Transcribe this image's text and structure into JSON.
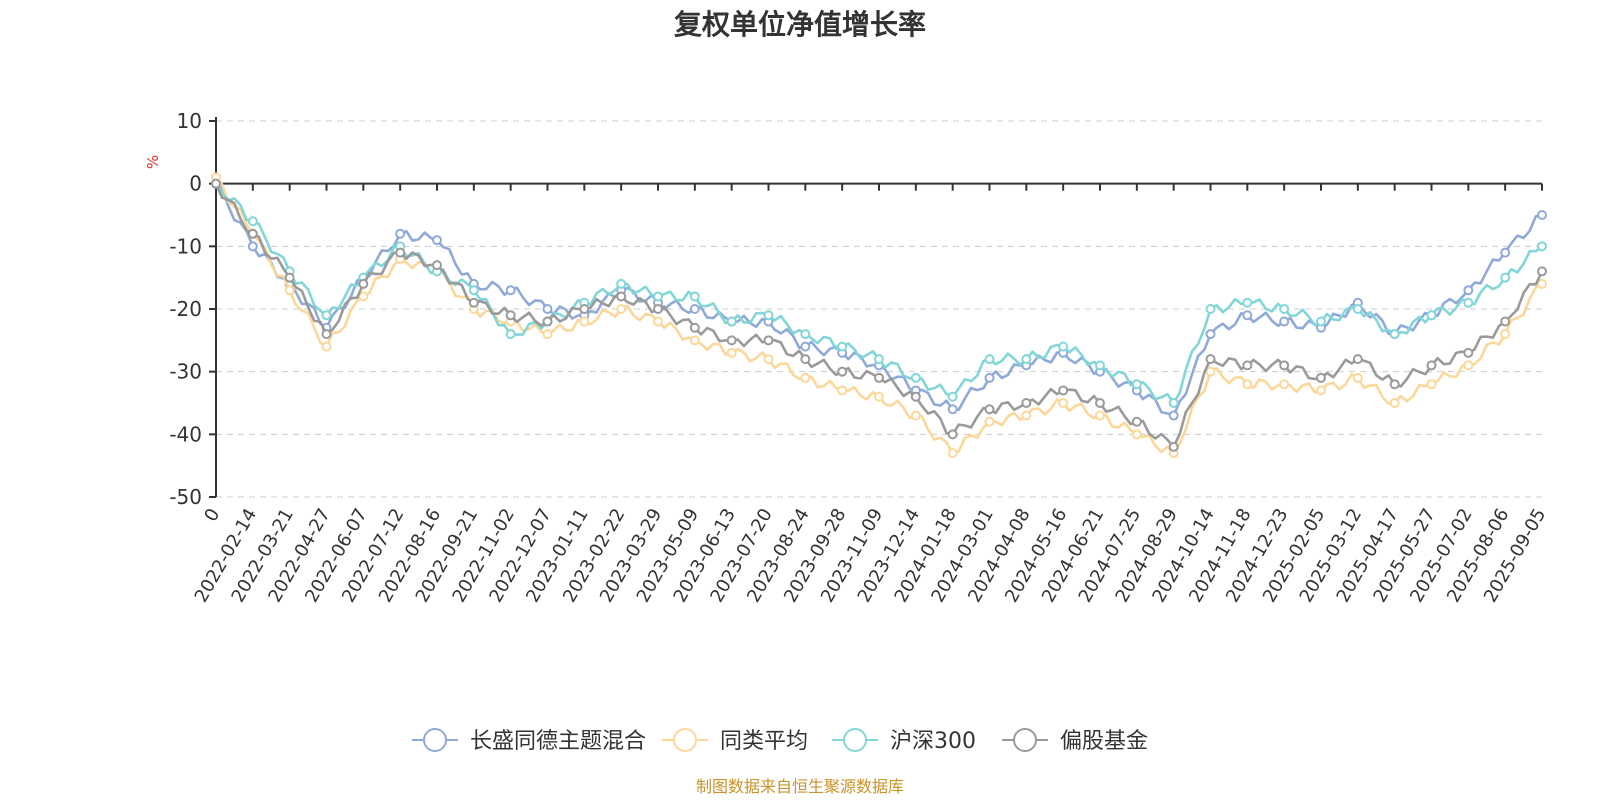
{
  "chart_data": {
    "type": "line",
    "title": "复权单位净值增长率",
    "ylabel": "%",
    "xlabel": "",
    "ylim": [
      -50,
      10
    ],
    "yticks": [
      10,
      0,
      -10,
      -20,
      -30,
      -40,
      -50
    ],
    "categories": [
      "0",
      "2022-02-14",
      "2022-03-21",
      "2022-04-27",
      "2022-06-07",
      "2022-07-12",
      "2022-08-16",
      "2022-09-21",
      "2022-11-02",
      "2022-12-07",
      "2023-01-11",
      "2023-02-22",
      "2023-03-29",
      "2023-05-09",
      "2023-06-13",
      "2023-07-20",
      "2023-08-24",
      "2023-09-28",
      "2023-11-09",
      "2023-12-14",
      "2024-01-18",
      "2024-03-01",
      "2024-04-08",
      "2024-05-16",
      "2024-06-21",
      "2024-07-25",
      "2024-08-29",
      "2024-10-14",
      "2024-11-18",
      "2024-12-23",
      "2025-02-05",
      "2025-03-12",
      "2025-04-17",
      "2025-05-27",
      "2025-07-02",
      "2025-08-06",
      "2025-09-05"
    ],
    "series": [
      {
        "name": "长盛同德主题混合",
        "color": "#8fa9d8",
        "values": [
          0,
          -10,
          -16,
          -23,
          -15,
          -8,
          -9,
          -16,
          -17,
          -20,
          -21,
          -17,
          -19,
          -20,
          -22,
          -22,
          -26,
          -27,
          -29,
          -33,
          -36,
          -31,
          -29,
          -27,
          -30,
          -33,
          -37,
          -24,
          -21,
          -22,
          -23,
          -19,
          -24,
          -21,
          -17,
          -11,
          -5
        ]
      },
      {
        "name": "同类平均",
        "color": "#fcd79a",
        "values": [
          1,
          -8,
          -17,
          -26,
          -18,
          -12,
          -14,
          -20,
          -22,
          -24,
          -22,
          -20,
          -22,
          -25,
          -27,
          -28,
          -31,
          -33,
          -34,
          -37,
          -43,
          -38,
          -37,
          -35,
          -37,
          -40,
          -43,
          -30,
          -32,
          -32,
          -33,
          -31,
          -35,
          -32,
          -29,
          -24,
          -16
        ]
      },
      {
        "name": "沪深300",
        "color": "#82d6d8",
        "values": [
          0,
          -6,
          -14,
          -21,
          -15,
          -10,
          -14,
          -17,
          -24,
          -22,
          -19,
          -16,
          -18,
          -18,
          -22,
          -21,
          -24,
          -26,
          -28,
          -31,
          -34,
          -28,
          -28,
          -26,
          -29,
          -32,
          -35,
          -20,
          -19,
          -20,
          -22,
          -20,
          -24,
          -21,
          -19,
          -15,
          -10
        ]
      },
      {
        "name": "偏股基金",
        "color": "#9a9a9a",
        "values": [
          0,
          -8,
          -15,
          -24,
          -16,
          -11,
          -13,
          -19,
          -21,
          -22,
          -20,
          -18,
          -20,
          -23,
          -25,
          -25,
          -28,
          -30,
          -31,
          -34,
          -40,
          -36,
          -35,
          -33,
          -35,
          -38,
          -42,
          -28,
          -29,
          -29,
          -31,
          -28,
          -32,
          -29,
          -27,
          -22,
          -14
        ]
      }
    ]
  },
  "source_note": "制图数据来自恒生聚源数据库"
}
